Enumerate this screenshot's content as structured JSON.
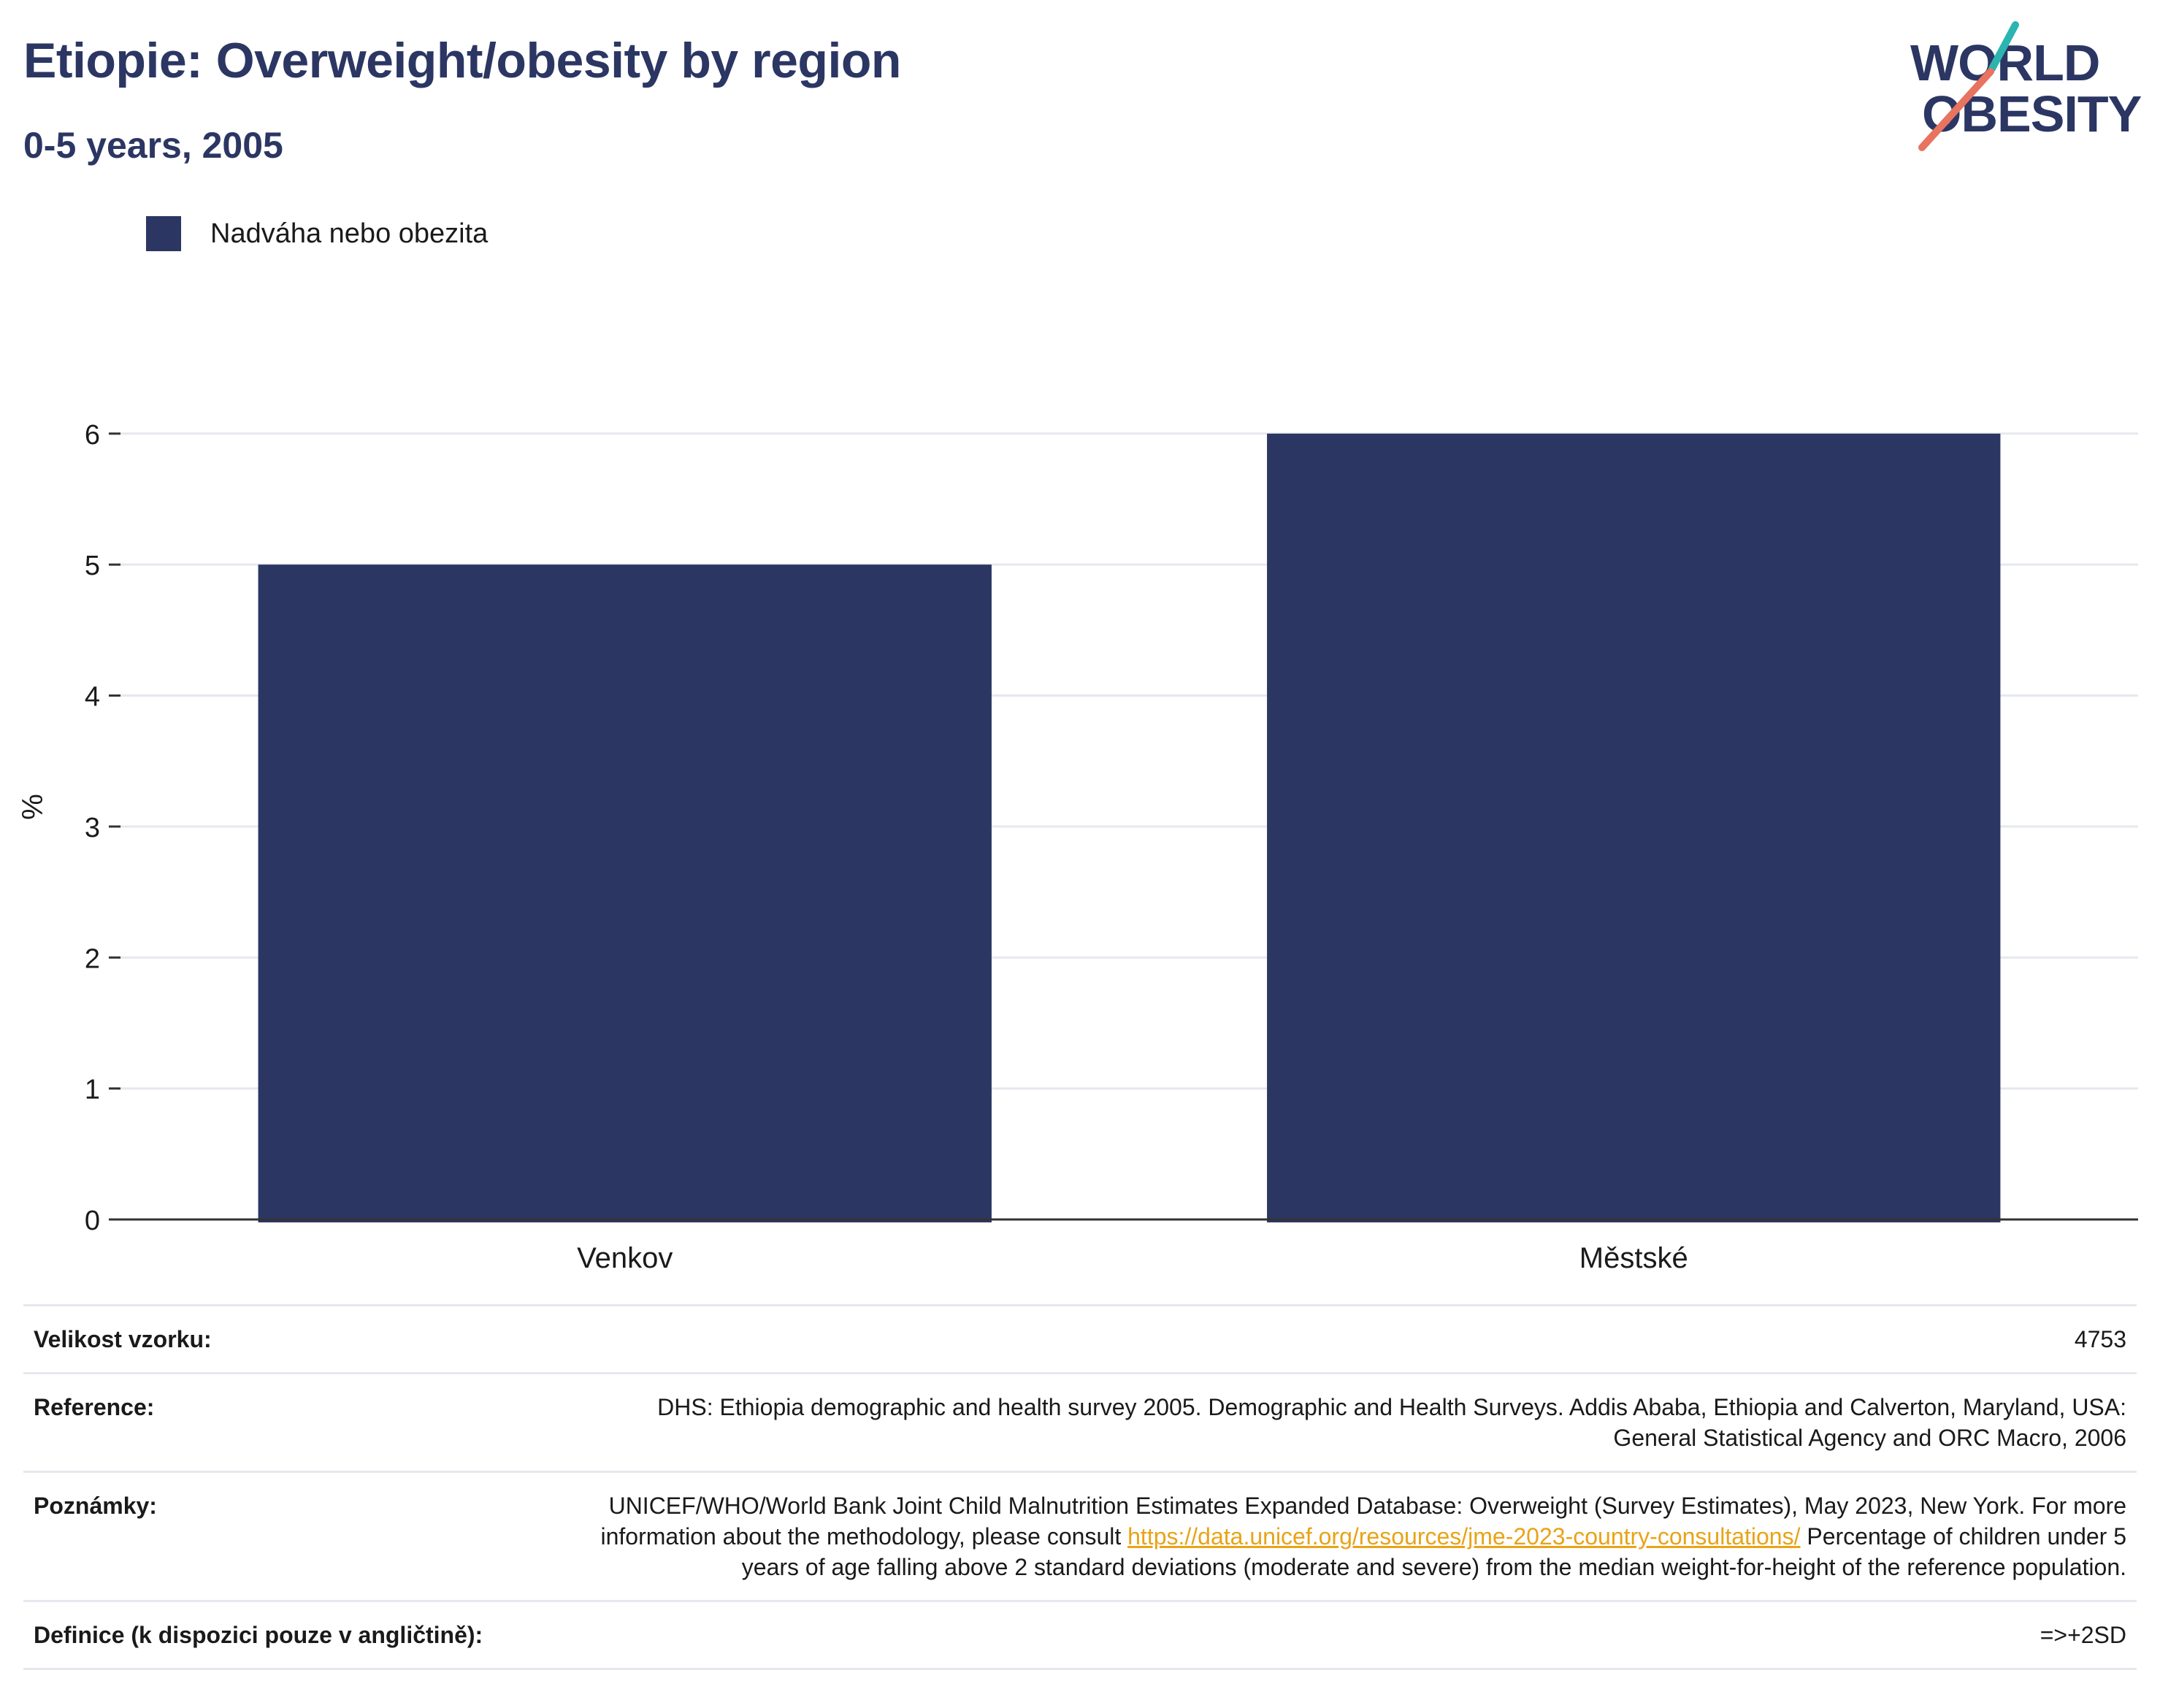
{
  "header": {
    "title": "Etiopie: Overweight/obesity by region",
    "subtitle": "0-5 years, 2005"
  },
  "logo": {
    "line1": "WORLD",
    "line2": "OBESITY"
  },
  "colors": {
    "bar": "#2b3663",
    "title": "#2b3663",
    "grid": "#e6e8ef",
    "axis": "#333333",
    "link": "#e8a317"
  },
  "chart_data": {
    "type": "bar",
    "categories": [
      "Venkov",
      "Městské"
    ],
    "series": [
      {
        "name": "Nadváha nebo obezita",
        "values": [
          5.0,
          6.0
        ]
      }
    ],
    "title": "Etiopie: Overweight/obesity by region",
    "subtitle": "0-5 years, 2005",
    "xlabel": "",
    "ylabel": "%",
    "ylim": [
      0,
      6.3
    ],
    "yticks": [
      0,
      1,
      2,
      3,
      4,
      5,
      6
    ],
    "grid": true,
    "legend": "top-left"
  },
  "info": {
    "sample": {
      "label": "Velikost vzorku:",
      "value": "4753"
    },
    "reference": {
      "label": "Reference:",
      "value": "DHS: Ethiopia demographic and health survey 2005. Demographic and Health Surveys. Addis Ababa, Ethiopia and Calverton, Maryland, USA: General Statistical Agency and ORC Macro, 2006"
    },
    "notes": {
      "label": "Poznámky:",
      "text_before": "UNICEF/WHO/World Bank Joint Child Malnutrition Estimates Expanded Database: Overweight (Survey Estimates), May 2023, New York. For more information about the methodology, please consult ",
      "link": "https://data.unicef.org/resources/jme-2023-country-consultations/",
      "text_after": " Percentage of children under 5 years of age falling above 2 standard deviations (moderate and severe) from the median weight-for-height of the reference population."
    },
    "definition": {
      "label": "Definice (k dispozici pouze v angličtině):",
      "value": "=>+2SD"
    }
  }
}
